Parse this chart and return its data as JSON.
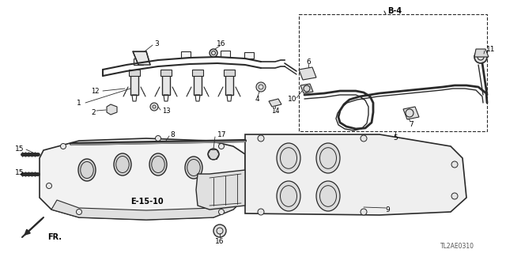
{
  "background_color": "#ffffff",
  "line_color": "#2a2a2a",
  "figsize": [
    6.4,
    3.2
  ],
  "dpi": 100,
  "diagram_code": "TL2AE0310"
}
